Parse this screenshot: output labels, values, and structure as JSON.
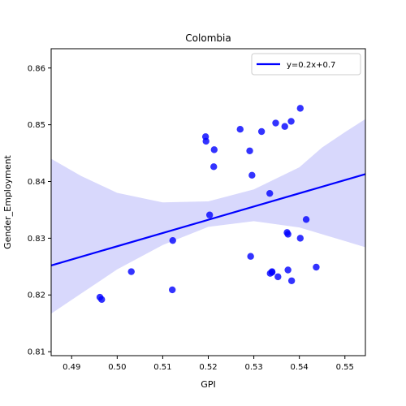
{
  "chart_data": {
    "type": "scatter",
    "title": "Colombia",
    "xlabel": "GPI",
    "ylabel": "Gender_Employment",
    "xlim": [
      0.4855,
      0.5545
    ],
    "ylim": [
      0.8093,
      0.8634
    ],
    "xticks": [
      0.49,
      0.5,
      0.51,
      0.52,
      0.53,
      0.54,
      0.55
    ],
    "xtick_labels": [
      "0.49",
      "0.50",
      "0.51",
      "0.52",
      "0.53",
      "0.54",
      "0.55"
    ],
    "yticks": [
      0.81,
      0.82,
      0.83,
      0.84,
      0.85,
      0.86
    ],
    "ytick_labels": [
      "0.81",
      "0.82",
      "0.83",
      "0.84",
      "0.85",
      "0.86"
    ],
    "grid": false,
    "legend_position": "top-right",
    "series": [
      {
        "name": "",
        "kind": "points",
        "color": "#0000ff",
        "x": [
          0.4962,
          0.4966,
          0.5031,
          0.5121,
          0.5122,
          0.5194,
          0.5195,
          0.5203,
          0.5212,
          0.5213,
          0.527,
          0.5291,
          0.5293,
          0.5296,
          0.5317,
          0.5335,
          0.5336,
          0.534,
          0.534,
          0.5348,
          0.5353,
          0.5368,
          0.5373,
          0.5375,
          0.5375,
          0.5382,
          0.5383,
          0.5402,
          0.5402,
          0.5415,
          0.5437
        ],
        "y": [
          0.8196,
          0.8192,
          0.8241,
          0.8209,
          0.8296,
          0.8479,
          0.8471,
          0.8341,
          0.8426,
          0.8456,
          0.8492,
          0.8454,
          0.8268,
          0.8411,
          0.8488,
          0.8379,
          0.8238,
          0.824,
          0.8241,
          0.8503,
          0.8232,
          0.8497,
          0.831,
          0.8307,
          0.8244,
          0.8506,
          0.8225,
          0.8529,
          0.83,
          0.8333,
          0.8249
        ]
      },
      {
        "name": "y=0.2x+0.7",
        "kind": "regression-line",
        "color": "#0000ff",
        "x": [
          0.4855,
          0.5545
        ],
        "y": [
          0.8252,
          0.8413
        ]
      },
      {
        "name": "",
        "kind": "confidence-band",
        "color": "#d8d8fc",
        "x": [
          0.4855,
          0.492,
          0.5,
          0.51,
          0.52,
          0.53,
          0.54,
          0.545,
          0.55,
          0.5545
        ],
        "lower": [
          0.8167,
          0.8202,
          0.8245,
          0.8288,
          0.832,
          0.833,
          0.8319,
          0.8307,
          0.8295,
          0.8284
        ],
        "upper": [
          0.844,
          0.841,
          0.838,
          0.8363,
          0.8365,
          0.8386,
          0.8425,
          0.846,
          0.8487,
          0.851
        ]
      }
    ]
  }
}
